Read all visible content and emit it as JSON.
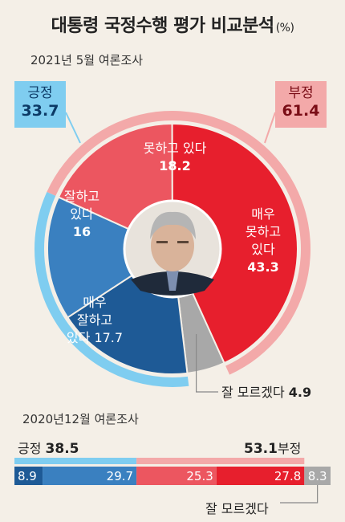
{
  "title": "대통령 국정수행 평가 비교분석",
  "title_unit": "(%)",
  "survey_may": "2021년 5월 여론조사",
  "survey_dec": "2020년12월 여론조사",
  "colors": {
    "very_positive": "#1e5a96",
    "positive": "#3a80c0",
    "negative": "#ec5660",
    "very_negative": "#e71f2d",
    "unsure": "#a8a8a8",
    "outer_positive": "#7fcdf0",
    "outer_negative": "#f3a9a9",
    "background": "#f4efe7"
  },
  "icons": {
    "center": "president-portrait"
  },
  "chart_data": [
    {
      "type": "pie",
      "subtitle": "2021년 5월 여론조사",
      "slices": [
        {
          "name": "못하고 있다",
          "value": 18.2
        },
        {
          "name": "매우 못하고 있다",
          "value": 43.3
        },
        {
          "name": "잘 모르겠다",
          "value": 4.9
        },
        {
          "name": "매우 잘하고 있다",
          "value": 17.7
        },
        {
          "name": "잘하고 있다",
          "value": 16
        }
      ],
      "groups": [
        {
          "name": "긍정",
          "value": 33.7
        },
        {
          "name": "부정",
          "value": 61.4
        }
      ],
      "labels": {
        "negative": [
          "못하고 있다",
          "18.2"
        ],
        "very_negative": [
          "매우",
          "못하고",
          "있다",
          "43.3"
        ],
        "unsure": [
          "잘 모르겠다",
          "4.9"
        ],
        "very_positive": [
          "매우",
          "잘하고",
          "있다 17.7"
        ],
        "positive": [
          "잘하고",
          "있다",
          "16"
        ],
        "pos_group": [
          "긍정",
          "33.7"
        ],
        "neg_group": [
          "부정",
          "61.4"
        ]
      }
    },
    {
      "type": "bar",
      "subtitle": "2020년12월 여론조사",
      "segments": [
        {
          "name": "매우 잘하고 있다",
          "value": 8.9
        },
        {
          "name": "잘하고 있다",
          "value": 29.7
        },
        {
          "name": "못하고 있다",
          "value": 25.3
        },
        {
          "name": "매우 못하고 있다",
          "value": 27.8
        },
        {
          "name": "잘 모르겠다",
          "value": 8.3
        }
      ],
      "segment_labels": [
        "8.9",
        "29.7",
        "25.3",
        "27.8",
        "8.3"
      ],
      "groups": [
        {
          "name": "긍정",
          "value": 38.5,
          "label": "38.5"
        },
        {
          "name": "부정",
          "value": 53.1,
          "label": "53.1"
        }
      ],
      "unsure_label": "잘 모르겠다"
    }
  ]
}
